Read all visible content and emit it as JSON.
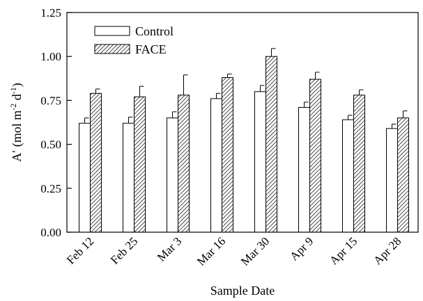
{
  "chart_data": {
    "type": "bar",
    "title": "",
    "xlabel": "Sample Date",
    "ylabel_parts": {
      "prefix": "A′ (mol m",
      "exp1": "-2",
      "mid": " d",
      "exp2": "-1",
      "suffix": ")"
    },
    "categories": [
      "Feb 12",
      "Feb 25",
      "Mar 3",
      "Mar 16",
      "Mar 30",
      "Apr 9",
      "Apr 15",
      "Apr 28"
    ],
    "series": [
      {
        "name": "Control",
        "values": [
          0.62,
          0.62,
          0.65,
          0.76,
          0.8,
          0.71,
          0.64,
          0.59
        ],
        "errors": [
          0.03,
          0.035,
          0.035,
          0.03,
          0.035,
          0.03,
          0.025,
          0.025
        ],
        "fill": "#ffffff",
        "pattern": "none"
      },
      {
        "name": "FACE",
        "values": [
          0.79,
          0.77,
          0.78,
          0.88,
          1.0,
          0.87,
          0.78,
          0.65
        ],
        "errors": [
          0.025,
          0.06,
          0.115,
          0.02,
          0.045,
          0.04,
          0.03,
          0.04
        ],
        "fill": "#ffffff",
        "pattern": "hatched"
      }
    ],
    "yticks": [
      "0.00",
      "0.25",
      "0.50",
      "0.75",
      "1.00",
      "1.25"
    ],
    "ylim": [
      0,
      1.25
    ],
    "grid": false,
    "legend_position": "top-left",
    "colors": {
      "axis": "#000000",
      "bar_stroke": "#000000",
      "hatch": "#000000"
    }
  }
}
